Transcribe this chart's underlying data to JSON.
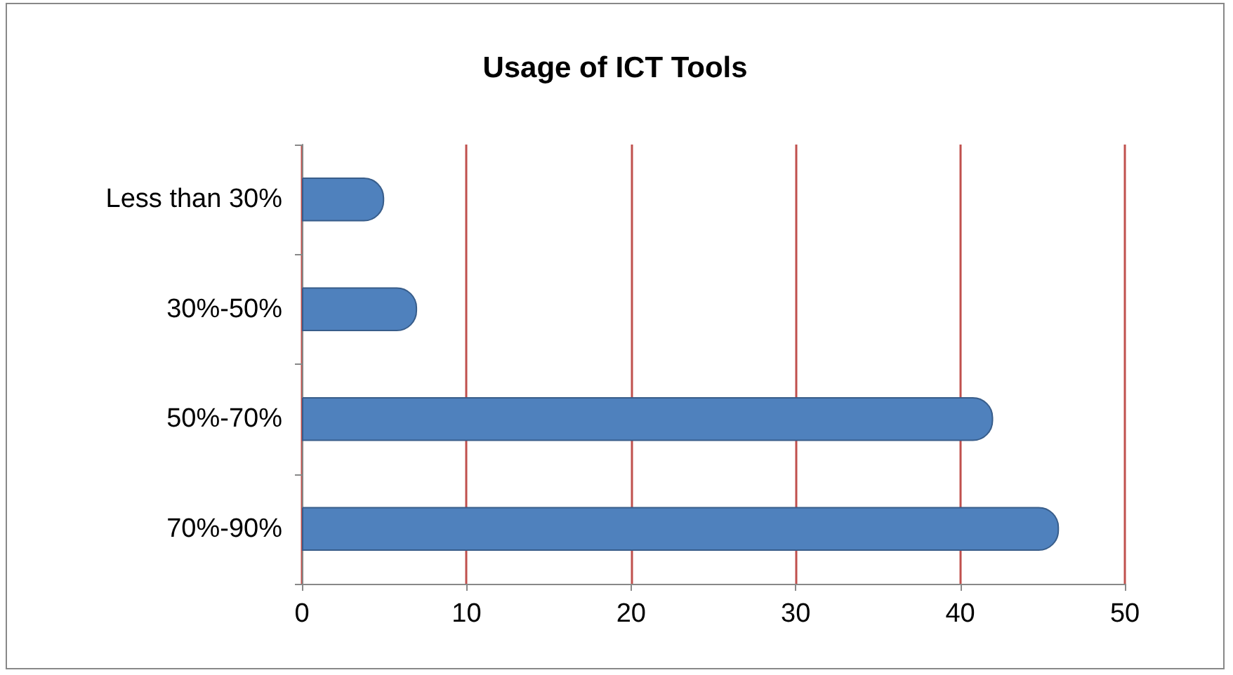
{
  "chart_data": {
    "type": "bar",
    "title": "Usage of ICT Tools",
    "orientation": "horizontal",
    "categories": [
      "Less than 30%",
      "30%-50%",
      "50%-70%",
      "70%-90%"
    ],
    "values": [
      5,
      7,
      42,
      46
    ],
    "color": "#4f81bd",
    "xlim": [
      0,
      50
    ],
    "xticks": [
      0,
      10,
      20,
      30,
      40,
      50
    ],
    "grid": "x"
  }
}
